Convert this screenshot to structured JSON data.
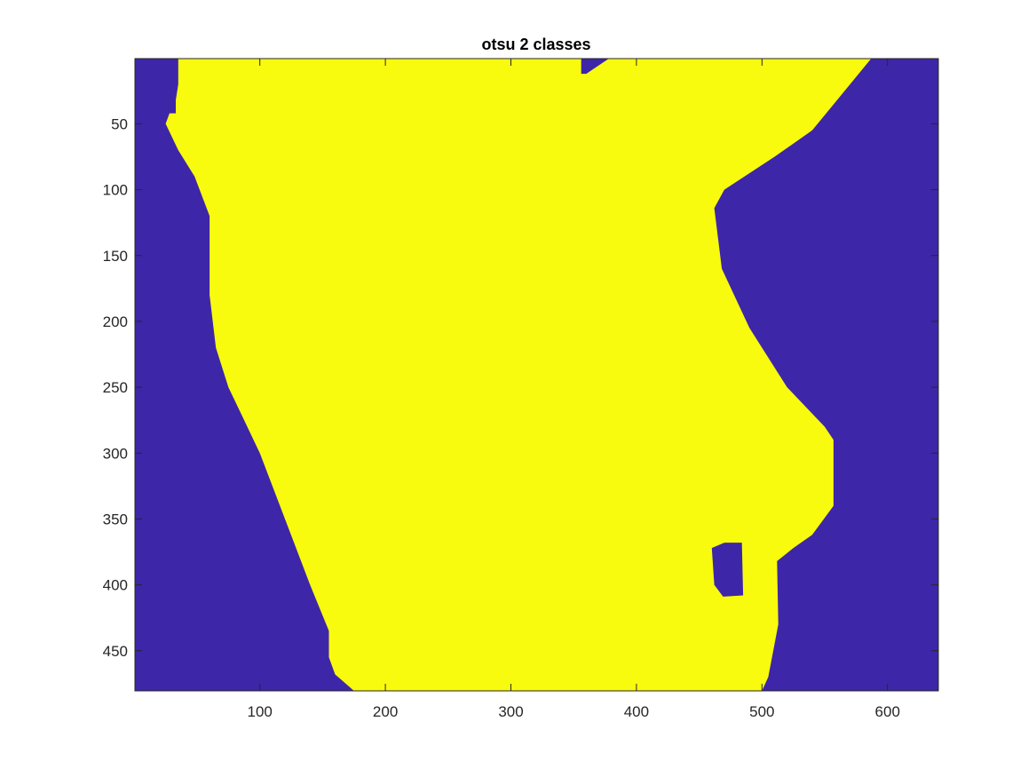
{
  "figure": {
    "title": "otsu 2 classes"
  },
  "chart_data": {
    "type": "heatmap",
    "title": "otsu 2 classes",
    "xlabel": "",
    "ylabel": "",
    "xlim": [
      0.5,
      640.5
    ],
    "ylim": [
      0.5,
      480.5
    ],
    "y_direction": "reverse",
    "x_ticks": [
      100,
      200,
      300,
      400,
      500,
      600
    ],
    "y_ticks": [
      50,
      100,
      150,
      200,
      250,
      300,
      350,
      400,
      450
    ],
    "classes": [
      {
        "label": "background",
        "value": 1,
        "color": "#3e26a8"
      },
      {
        "label": "foreground",
        "value": 2,
        "color": "#f9fb0e"
      }
    ],
    "grid": false,
    "regions": {
      "foreground_outline": [
        [
          35,
          0.5
        ],
        [
          587,
          0.5
        ],
        [
          540,
          55
        ],
        [
          510,
          75
        ],
        [
          470,
          100
        ],
        [
          462,
          114
        ],
        [
          468,
          160
        ],
        [
          490,
          205
        ],
        [
          520,
          250
        ],
        [
          550,
          280
        ],
        [
          557,
          290
        ],
        [
          557,
          340
        ],
        [
          540,
          362
        ],
        [
          525,
          372
        ],
        [
          512,
          382
        ],
        [
          513,
          430
        ],
        [
          505,
          470
        ],
        [
          500,
          480.5
        ],
        [
          175,
          480.5
        ],
        [
          160,
          468
        ],
        [
          155,
          455
        ],
        [
          155,
          435
        ],
        [
          140,
          400
        ],
        [
          120,
          350
        ],
        [
          100,
          300
        ],
        [
          85,
          270
        ],
        [
          75,
          250
        ],
        [
          65,
          220
        ],
        [
          60,
          180
        ],
        [
          60,
          120
        ],
        [
          48,
          90
        ],
        [
          35,
          70
        ],
        [
          25,
          50
        ],
        [
          28,
          42
        ],
        [
          33,
          42
        ],
        [
          33,
          32
        ],
        [
          35,
          20
        ]
      ],
      "background_holes": [
        [
          [
            356,
            0.5
          ],
          [
            378,
            0.5
          ],
          [
            360,
            12
          ],
          [
            356,
            12
          ]
        ],
        [
          [
            460,
            372
          ],
          [
            470,
            368
          ],
          [
            484,
            368
          ],
          [
            485,
            408
          ],
          [
            469,
            409
          ],
          [
            462,
            400
          ]
        ]
      ]
    }
  }
}
